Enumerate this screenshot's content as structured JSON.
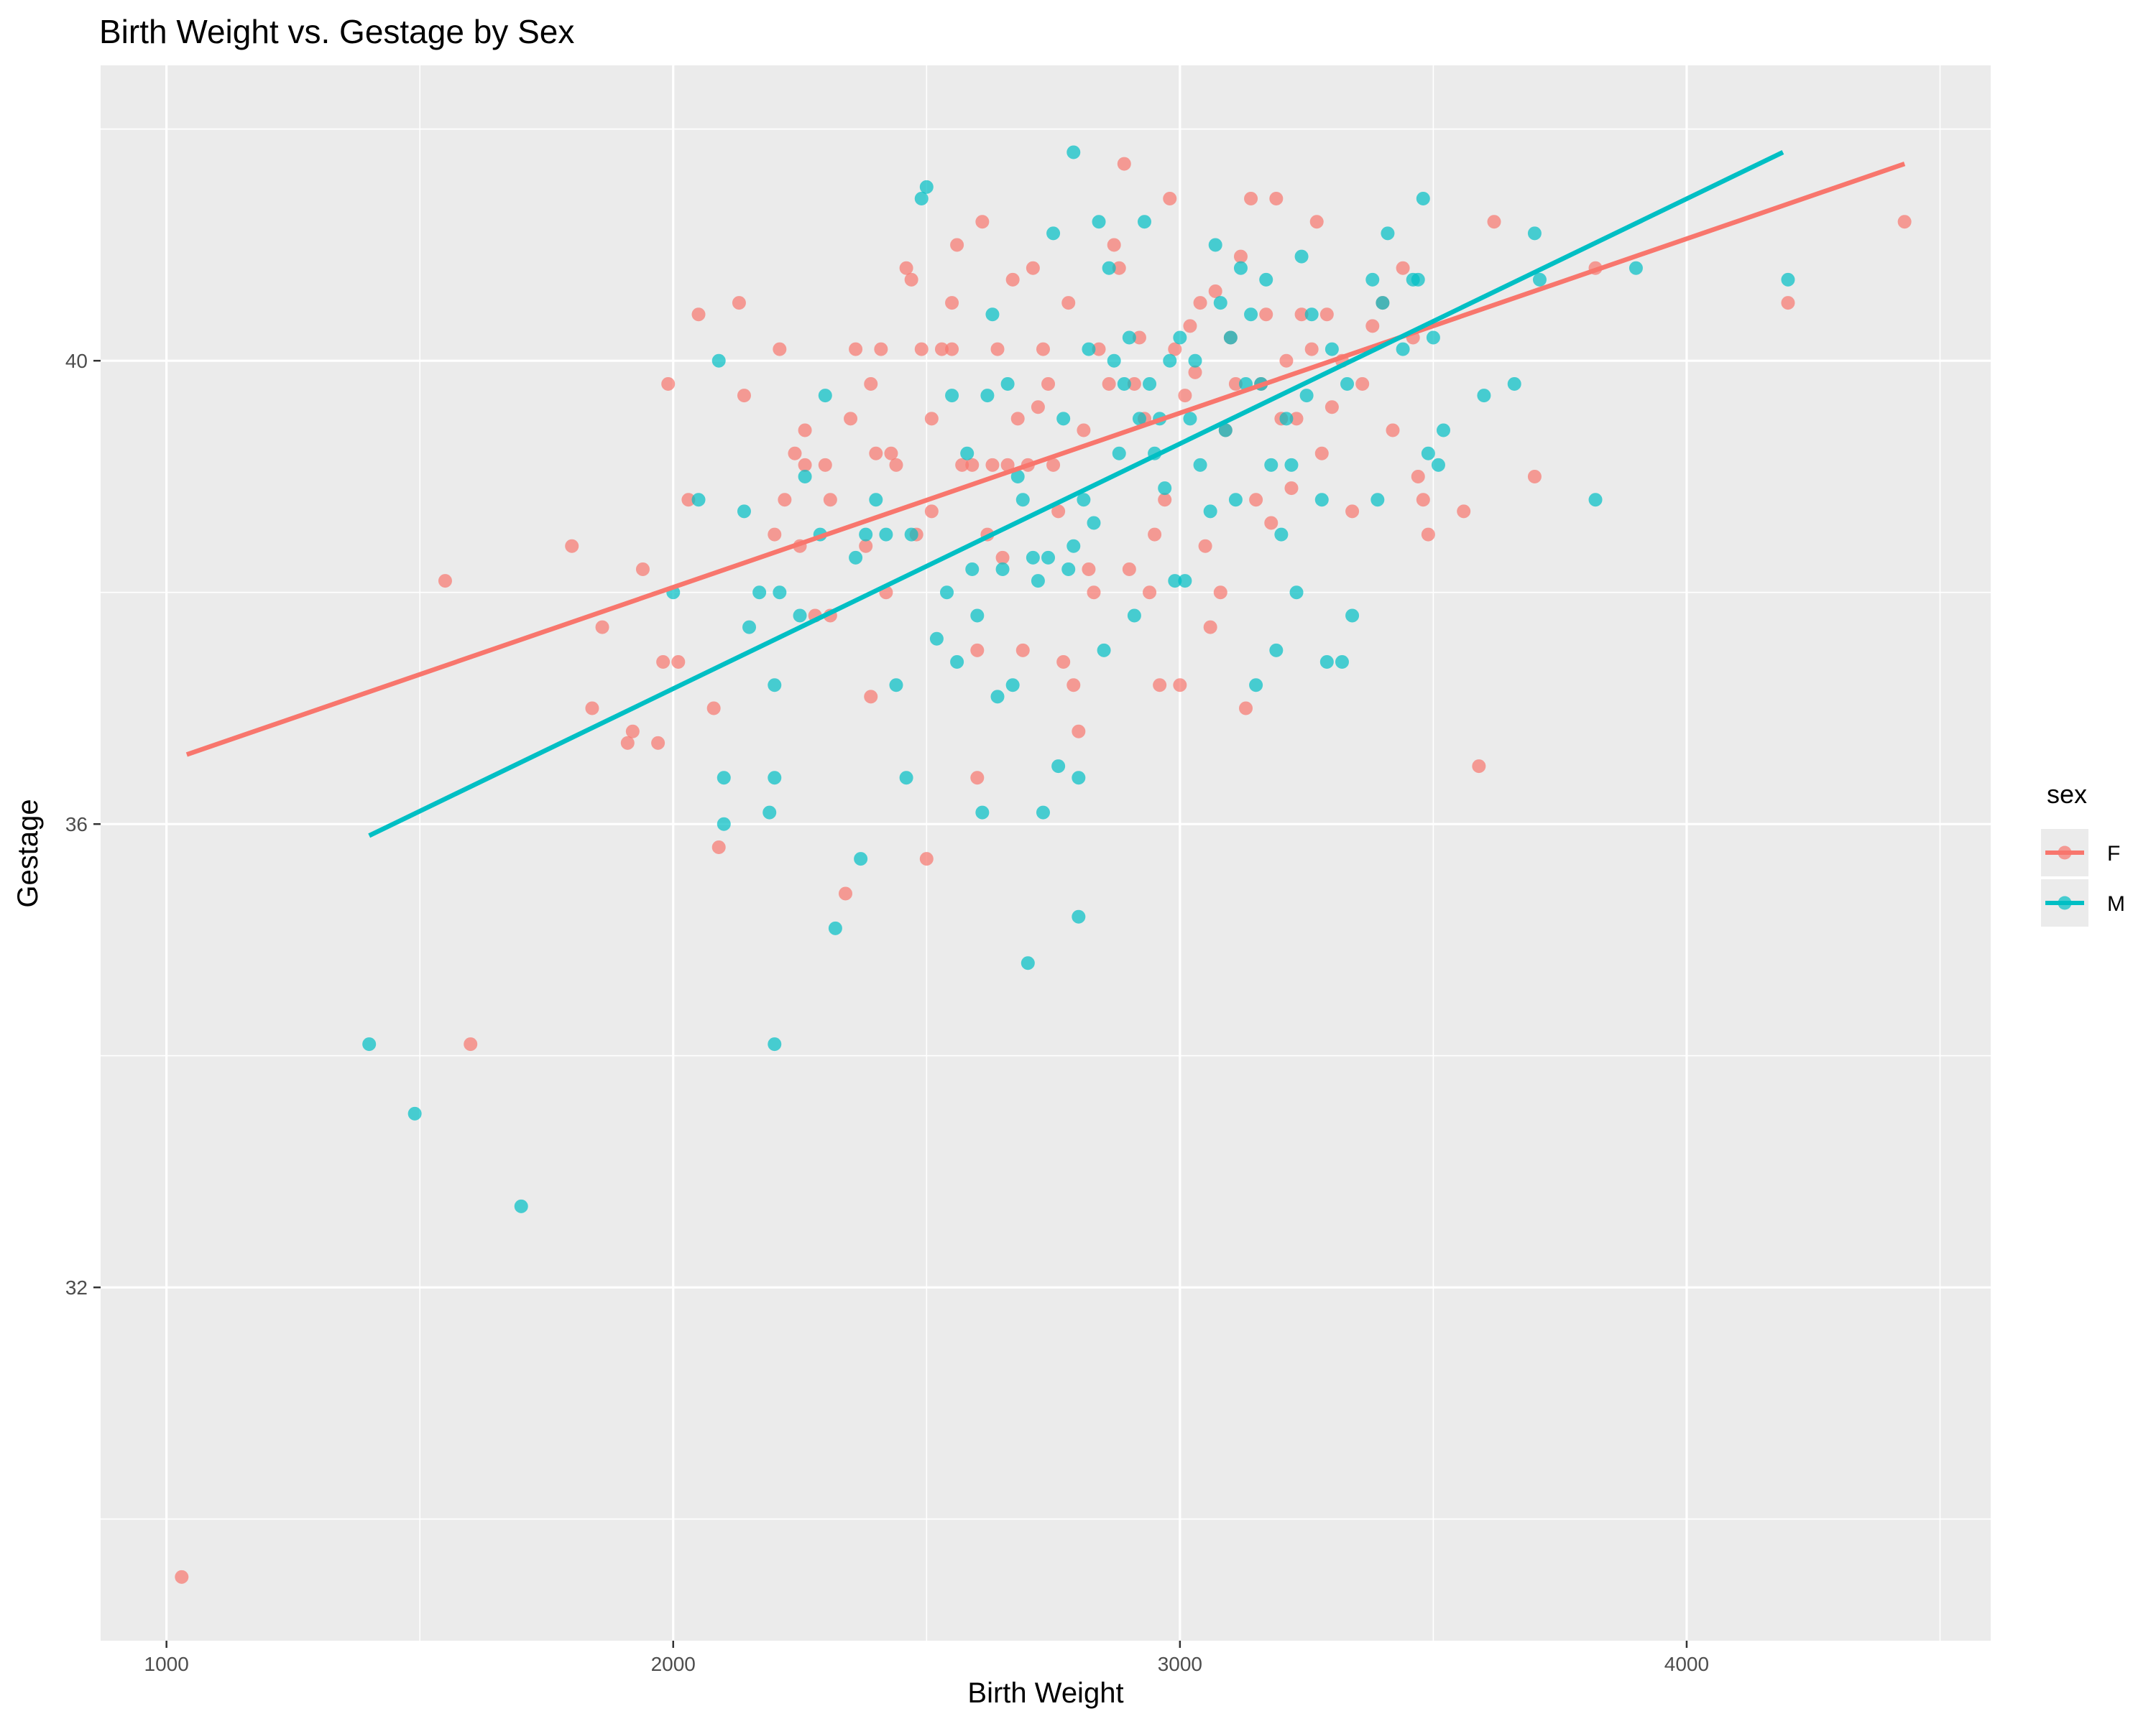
{
  "chart_data": {
    "type": "scatter",
    "title": "Birth Weight vs. Gestage by Sex",
    "xlabel": "Birth Weight",
    "ylabel": "Gestage",
    "xlim": [
      870,
      4600
    ],
    "ylim": [
      28.95,
      42.55
    ],
    "x_ticks": [
      1000,
      2000,
      3000,
      4000
    ],
    "y_ticks": [
      32,
      36,
      40
    ],
    "grid": true,
    "legend": {
      "title": "sex",
      "position": "right"
    },
    "series": [
      {
        "name": "F",
        "color": "#F8766D",
        "points": [
          [
            1030,
            29.5
          ],
          [
            1550,
            38.1
          ],
          [
            1600,
            34.1
          ],
          [
            1800,
            38.4
          ],
          [
            1840,
            37.0
          ],
          [
            1860,
            37.7
          ],
          [
            1910,
            36.7
          ],
          [
            1920,
            36.8
          ],
          [
            1940,
            38.2
          ],
          [
            1970,
            36.7
          ],
          [
            1980,
            37.4
          ],
          [
            1990,
            39.8
          ],
          [
            2010,
            37.4
          ],
          [
            2030,
            38.8
          ],
          [
            2050,
            40.4
          ],
          [
            2080,
            37.0
          ],
          [
            2090,
            35.8
          ],
          [
            2130,
            40.5
          ],
          [
            2140,
            39.7
          ],
          [
            2200,
            38.5
          ],
          [
            2210,
            40.1
          ],
          [
            2220,
            38.8
          ],
          [
            2240,
            39.2
          ],
          [
            2250,
            38.4
          ],
          [
            2260,
            39.4
          ],
          [
            2260,
            39.1
          ],
          [
            2280,
            37.8
          ],
          [
            2300,
            39.1
          ],
          [
            2310,
            38.8
          ],
          [
            2310,
            37.8
          ],
          [
            2340,
            35.4
          ],
          [
            2350,
            39.5
          ],
          [
            2360,
            40.1
          ],
          [
            2380,
            38.4
          ],
          [
            2390,
            37.1
          ],
          [
            2390,
            39.8
          ],
          [
            2400,
            39.2
          ],
          [
            2410,
            40.1
          ],
          [
            2420,
            38.0
          ],
          [
            2430,
            39.2
          ],
          [
            2440,
            39.1
          ],
          [
            2460,
            40.8
          ],
          [
            2470,
            40.7
          ],
          [
            2480,
            38.5
          ],
          [
            2490,
            40.1
          ],
          [
            2500,
            35.7
          ],
          [
            2510,
            38.7
          ],
          [
            2510,
            39.5
          ],
          [
            2530,
            40.1
          ],
          [
            2550,
            40.5
          ],
          [
            2550,
            40.1
          ],
          [
            2560,
            41.0
          ],
          [
            2570,
            39.1
          ],
          [
            2590,
            39.1
          ],
          [
            2600,
            37.5
          ],
          [
            2600,
            36.4
          ],
          [
            2610,
            41.2
          ],
          [
            2620,
            38.5
          ],
          [
            2630,
            39.1
          ],
          [
            2640,
            40.1
          ],
          [
            2650,
            38.3
          ],
          [
            2660,
            39.1
          ],
          [
            2670,
            40.7
          ],
          [
            2680,
            39.5
          ],
          [
            2690,
            37.5
          ],
          [
            2700,
            39.1
          ],
          [
            2710,
            40.8
          ],
          [
            2720,
            39.6
          ],
          [
            2730,
            40.1
          ],
          [
            2740,
            39.8
          ],
          [
            2750,
            39.1
          ],
          [
            2760,
            38.7
          ],
          [
            2770,
            37.4
          ],
          [
            2780,
            40.5
          ],
          [
            2790,
            37.2
          ],
          [
            2800,
            36.8
          ],
          [
            2810,
            39.4
          ],
          [
            2820,
            38.2
          ],
          [
            2830,
            38.0
          ],
          [
            2840,
            40.1
          ],
          [
            2860,
            39.8
          ],
          [
            2870,
            41.0
          ],
          [
            2880,
            40.8
          ],
          [
            2890,
            41.7
          ],
          [
            2900,
            38.2
          ],
          [
            2910,
            39.8
          ],
          [
            2920,
            40.2
          ],
          [
            2930,
            39.5
          ],
          [
            2940,
            38.0
          ],
          [
            2950,
            38.5
          ],
          [
            2960,
            37.2
          ],
          [
            2970,
            38.8
          ],
          [
            2980,
            41.4
          ],
          [
            2990,
            40.1
          ],
          [
            3000,
            37.2
          ],
          [
            3010,
            39.7
          ],
          [
            3020,
            40.3
          ],
          [
            3030,
            39.9
          ],
          [
            3040,
            40.5
          ],
          [
            3050,
            38.4
          ],
          [
            3060,
            37.7
          ],
          [
            3070,
            40.6
          ],
          [
            3080,
            38.0
          ],
          [
            3090,
            39.4
          ],
          [
            3100,
            40.2
          ],
          [
            3110,
            39.8
          ],
          [
            3120,
            40.9
          ],
          [
            3130,
            37.0
          ],
          [
            3140,
            41.4
          ],
          [
            3150,
            38.8
          ],
          [
            3160,
            39.8
          ],
          [
            3170,
            40.4
          ],
          [
            3180,
            38.6
          ],
          [
            3190,
            41.4
          ],
          [
            3200,
            39.5
          ],
          [
            3210,
            40.0
          ],
          [
            3220,
            38.9
          ],
          [
            3230,
            39.5
          ],
          [
            3240,
            40.4
          ],
          [
            3260,
            40.1
          ],
          [
            3270,
            41.2
          ],
          [
            3280,
            39.2
          ],
          [
            3290,
            40.4
          ],
          [
            3300,
            39.6
          ],
          [
            3320,
            40.0
          ],
          [
            3340,
            38.7
          ],
          [
            3360,
            39.8
          ],
          [
            3380,
            40.3
          ],
          [
            3400,
            40.5
          ],
          [
            3420,
            39.4
          ],
          [
            3440,
            40.8
          ],
          [
            3460,
            40.2
          ],
          [
            3470,
            39.0
          ],
          [
            3480,
            38.8
          ],
          [
            3490,
            38.5
          ],
          [
            3560,
            38.7
          ],
          [
            3590,
            36.5
          ],
          [
            3620,
            41.2
          ],
          [
            3700,
            39.0
          ],
          [
            3820,
            40.8
          ],
          [
            4200,
            40.5
          ],
          [
            4430,
            41.2
          ]
        ],
        "fit": [
          [
            1040,
            36.6
          ],
          [
            4430,
            41.7
          ]
        ]
      },
      {
        "name": "M",
        "color": "#00BFC4",
        "points": [
          [
            1400,
            34.1
          ],
          [
            1490,
            33.5
          ],
          [
            1700,
            32.7
          ],
          [
            2000,
            38.0
          ],
          [
            2050,
            38.8
          ],
          [
            2090,
            40.0
          ],
          [
            2100,
            36.4
          ],
          [
            2100,
            36.0
          ],
          [
            2140,
            38.7
          ],
          [
            2150,
            37.7
          ],
          [
            2170,
            38.0
          ],
          [
            2190,
            36.1
          ],
          [
            2200,
            37.2
          ],
          [
            2200,
            36.4
          ],
          [
            2200,
            34.1
          ],
          [
            2210,
            38.0
          ],
          [
            2250,
            37.8
          ],
          [
            2260,
            39.0
          ],
          [
            2290,
            38.5
          ],
          [
            2300,
            39.7
          ],
          [
            2320,
            35.1
          ],
          [
            2360,
            38.3
          ],
          [
            2370,
            35.7
          ],
          [
            2380,
            38.5
          ],
          [
            2400,
            38.8
          ],
          [
            2420,
            38.5
          ],
          [
            2440,
            37.2
          ],
          [
            2460,
            36.4
          ],
          [
            2470,
            38.5
          ],
          [
            2490,
            41.4
          ],
          [
            2500,
            41.5
          ],
          [
            2520,
            37.6
          ],
          [
            2540,
            38.0
          ],
          [
            2550,
            39.7
          ],
          [
            2560,
            37.4
          ],
          [
            2580,
            39.2
          ],
          [
            2590,
            38.2
          ],
          [
            2600,
            37.8
          ],
          [
            2610,
            36.1
          ],
          [
            2620,
            39.7
          ],
          [
            2630,
            40.4
          ],
          [
            2640,
            37.1
          ],
          [
            2650,
            38.2
          ],
          [
            2660,
            39.8
          ],
          [
            2670,
            37.2
          ],
          [
            2680,
            39.0
          ],
          [
            2690,
            38.8
          ],
          [
            2700,
            34.8
          ],
          [
            2710,
            38.3
          ],
          [
            2720,
            38.1
          ],
          [
            2730,
            36.1
          ],
          [
            2740,
            38.3
          ],
          [
            2750,
            41.1
          ],
          [
            2760,
            36.5
          ],
          [
            2770,
            39.5
          ],
          [
            2780,
            38.2
          ],
          [
            2790,
            38.4
          ],
          [
            2790,
            41.8
          ],
          [
            2800,
            35.2
          ],
          [
            2800,
            36.4
          ],
          [
            2810,
            38.8
          ],
          [
            2820,
            40.1
          ],
          [
            2830,
            38.6
          ],
          [
            2840,
            41.2
          ],
          [
            2850,
            37.5
          ],
          [
            2860,
            40.8
          ],
          [
            2870,
            40.0
          ],
          [
            2880,
            39.2
          ],
          [
            2890,
            39.8
          ],
          [
            2900,
            40.2
          ],
          [
            2910,
            37.8
          ],
          [
            2920,
            39.5
          ],
          [
            2930,
            41.2
          ],
          [
            2940,
            39.8
          ],
          [
            2950,
            39.2
          ],
          [
            2960,
            39.5
          ],
          [
            2970,
            38.9
          ],
          [
            2980,
            40.0
          ],
          [
            2990,
            38.1
          ],
          [
            3000,
            40.2
          ],
          [
            3010,
            38.1
          ],
          [
            3020,
            39.5
          ],
          [
            3030,
            40.0
          ],
          [
            3040,
            39.1
          ],
          [
            3060,
            38.7
          ],
          [
            3070,
            41.0
          ],
          [
            3080,
            40.5
          ],
          [
            3090,
            39.4
          ],
          [
            3100,
            40.2
          ],
          [
            3110,
            38.8
          ],
          [
            3120,
            40.8
          ],
          [
            3130,
            39.8
          ],
          [
            3140,
            40.4
          ],
          [
            3150,
            37.2
          ],
          [
            3160,
            39.8
          ],
          [
            3170,
            40.7
          ],
          [
            3180,
            39.1
          ],
          [
            3190,
            37.5
          ],
          [
            3200,
            38.5
          ],
          [
            3210,
            39.5
          ],
          [
            3220,
            39.1
          ],
          [
            3230,
            38.0
          ],
          [
            3240,
            40.9
          ],
          [
            3250,
            39.7
          ],
          [
            3260,
            40.4
          ],
          [
            3280,
            38.8
          ],
          [
            3290,
            37.4
          ],
          [
            3300,
            40.1
          ],
          [
            3320,
            37.4
          ],
          [
            3330,
            39.8
          ],
          [
            3340,
            37.8
          ],
          [
            3380,
            40.7
          ],
          [
            3390,
            38.8
          ],
          [
            3400,
            40.5
          ],
          [
            3410,
            41.1
          ],
          [
            3440,
            40.1
          ],
          [
            3460,
            40.7
          ],
          [
            3470,
            40.7
          ],
          [
            3480,
            41.4
          ],
          [
            3490,
            39.2
          ],
          [
            3500,
            40.2
          ],
          [
            3510,
            39.1
          ],
          [
            3520,
            39.4
          ],
          [
            3600,
            39.7
          ],
          [
            3660,
            39.8
          ],
          [
            3700,
            41.1
          ],
          [
            3710,
            40.7
          ],
          [
            3820,
            38.8
          ],
          [
            3900,
            40.8
          ],
          [
            4200,
            40.7
          ]
        ],
        "fit": [
          [
            1400,
            35.9
          ],
          [
            4190,
            41.8
          ]
        ]
      }
    ]
  }
}
